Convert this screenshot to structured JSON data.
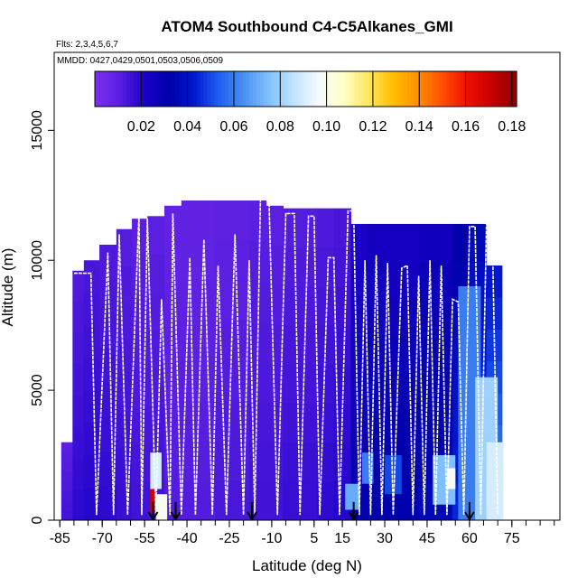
{
  "chart_data": {
    "type": "heatmap",
    "title": "ATOM4 Southbound C4-C5Alkanes_GMI",
    "subtitle_flights": "Flts: 2,3,4,5,6,7",
    "subtitle_dates": "MMDD: 0427,0429,0501,0503,0506,0509",
    "xlabel": "Latitude (deg N)",
    "ylabel": "Altitude (m)",
    "xlim": [
      -87,
      92
    ],
    "ylim": [
      0,
      18000
    ],
    "x_ticks": [
      -85,
      -70,
      -55,
      -40,
      -25,
      -10,
      5,
      15,
      30,
      45,
      60,
      75
    ],
    "x_tick_labels": [
      "-85",
      "-70",
      "-55",
      "-40",
      "-25",
      "-10",
      "5",
      "15",
      "30",
      "45",
      "60",
      "75"
    ],
    "y_ticks": [
      0,
      5000,
      10000,
      15000
    ],
    "y_tick_labels": [
      "0",
      "5000",
      "10000",
      "15000"
    ],
    "colorbar": {
      "range": [
        0.0,
        0.182
      ],
      "ticks": [
        0.02,
        0.04,
        0.06,
        0.08,
        0.1,
        0.12,
        0.14,
        0.16,
        0.18
      ],
      "tick_labels": [
        "0.02",
        "0.04",
        "0.06",
        "0.08",
        "0.10",
        "0.12",
        "0.14",
        "0.16",
        "0.18"
      ],
      "colors": [
        "#7f2ff0",
        "#5a1fe0",
        "#1a00c8",
        "#0000a8",
        "#0018d0",
        "#2060f0",
        "#4a90f0",
        "#80c0ff",
        "#c0e4ff",
        "#f4faff",
        "#ffffc8",
        "#ffe860",
        "#ffc000",
        "#ff9000",
        "#ff5000",
        "#ee1000",
        "#c80000",
        "#8a0000"
      ]
    },
    "columns": [
      {
        "lat": -82,
        "top": 3000,
        "value": 0.01
      },
      {
        "lat": -79,
        "top": 9600,
        "value": 0.012
      },
      {
        "lat": -74,
        "top": 10000,
        "value": 0.013
      },
      {
        "lat": -68,
        "top": 10600,
        "value": 0.012
      },
      {
        "lat": -62,
        "top": 11200,
        "value": 0.011
      },
      {
        "lat": -57,
        "top": 11600,
        "value": 0.01
      },
      {
        "lat": -51,
        "top": 11700,
        "value": 0.01
      },
      {
        "lat": -45,
        "top": 12100,
        "value": 0.008
      },
      {
        "lat": -39,
        "top": 12300,
        "value": 0.008
      },
      {
        "lat": -33,
        "top": 12300,
        "value": 0.008
      },
      {
        "lat": -27,
        "top": 12300,
        "value": 0.009
      },
      {
        "lat": -21,
        "top": 12300,
        "value": 0.009
      },
      {
        "lat": -15,
        "top": 12300,
        "value": 0.01
      },
      {
        "lat": -9,
        "top": 12100,
        "value": 0.01
      },
      {
        "lat": -3,
        "top": 12000,
        "value": 0.011
      },
      {
        "lat": 3,
        "top": 12000,
        "value": 0.011
      },
      {
        "lat": 9,
        "top": 12000,
        "value": 0.012
      },
      {
        "lat": 15,
        "top": 12000,
        "value": 0.013
      },
      {
        "lat": 21,
        "top": 11400,
        "value": 0.02
      },
      {
        "lat": 27,
        "top": 11400,
        "value": 0.022
      },
      {
        "lat": 33,
        "top": 11400,
        "value": 0.022
      },
      {
        "lat": 39,
        "top": 11400,
        "value": 0.022
      },
      {
        "lat": 45,
        "top": 11400,
        "value": 0.024
      },
      {
        "lat": 51,
        "top": 11400,
        "value": 0.024
      },
      {
        "lat": 57,
        "top": 11400,
        "value": 0.03
      },
      {
        "lat": 63,
        "top": 11400,
        "value": 0.034
      },
      {
        "lat": 69,
        "top": 9800,
        "value": 0.04
      }
    ],
    "patches": [
      {
        "lat0": -53,
        "lat1": -51,
        "alt0": 300,
        "alt1": 1200,
        "value": 0.17
      },
      {
        "lat0": -53,
        "lat1": -49,
        "alt0": 1200,
        "alt1": 2600,
        "value": 0.09
      },
      {
        "lat0": -51,
        "lat1": -47,
        "alt0": 0,
        "alt1": 1000,
        "value": 0.1
      },
      {
        "lat0": 16,
        "lat1": 21,
        "alt0": 400,
        "alt1": 1400,
        "value": 0.07
      },
      {
        "lat0": 22,
        "lat1": 26,
        "alt0": 1400,
        "alt1": 2600,
        "value": 0.06
      },
      {
        "lat0": 30,
        "lat1": 36,
        "alt0": 1000,
        "alt1": 2500,
        "value": 0.05
      },
      {
        "lat0": 47,
        "lat1": 55,
        "alt0": 600,
        "alt1": 2500,
        "value": 0.075
      },
      {
        "lat0": 52,
        "lat1": 55,
        "alt0": 1200,
        "alt1": 2000,
        "value": 0.1
      },
      {
        "lat0": 56,
        "lat1": 64,
        "alt0": 0,
        "alt1": 9000,
        "value": 0.06
      },
      {
        "lat0": 62,
        "lat1": 70,
        "alt0": 0,
        "alt1": 5500,
        "value": 0.08
      },
      {
        "lat0": 66,
        "lat1": 72,
        "alt0": 0,
        "alt1": 3000,
        "value": 0.09
      }
    ],
    "flight_tracks": [
      [
        [
          -80,
          9500
        ],
        [
          -74,
          9500
        ],
        [
          -72,
          200
        ],
        [
          -68,
          10300
        ],
        [
          -66,
          200
        ],
        [
          -64,
          11000
        ],
        [
          -61,
          200
        ],
        [
          -57,
          11800
        ],
        [
          -56,
          200
        ],
        [
          -54,
          11600
        ],
        [
          -51,
          200
        ],
        [
          -49,
          8500
        ],
        [
          -46,
          200
        ],
        [
          -45,
          11800
        ],
        [
          -42,
          200
        ],
        [
          -39,
          10100
        ],
        [
          -37,
          200
        ],
        [
          -34,
          10800
        ],
        [
          -31,
          200
        ],
        [
          -29,
          9800
        ],
        [
          -26,
          200
        ],
        [
          -23,
          11000
        ],
        [
          -20,
          200
        ],
        [
          -18,
          10000
        ],
        [
          -16,
          200
        ],
        [
          -14,
          12400
        ],
        [
          -11,
          12400
        ],
        [
          -8,
          200
        ],
        [
          -5,
          11800
        ],
        [
          -2,
          11800
        ],
        [
          0,
          200
        ],
        [
          3,
          11700
        ],
        [
          5,
          11700
        ],
        [
          7,
          200
        ],
        [
          10,
          10100
        ],
        [
          12,
          10100
        ],
        [
          14,
          200
        ],
        [
          17,
          11900
        ],
        [
          19,
          11900
        ],
        [
          21,
          200
        ],
        [
          23,
          10000
        ],
        [
          25,
          200
        ],
        [
          27,
          10200
        ],
        [
          29,
          200
        ],
        [
          31,
          9900
        ],
        [
          33,
          200
        ],
        [
          36,
          9700
        ],
        [
          38,
          9800
        ],
        [
          40,
          200
        ],
        [
          42,
          9400
        ],
        [
          44,
          200
        ],
        [
          46,
          10000
        ],
        [
          48,
          200
        ],
        [
          50,
          9800
        ],
        [
          52,
          200
        ],
        [
          54,
          8500
        ],
        [
          56,
          8400
        ],
        [
          58,
          200
        ],
        [
          60,
          11300
        ],
        [
          62,
          11300
        ],
        [
          64,
          200
        ],
        [
          66,
          11400
        ],
        [
          68,
          11400
        ],
        [
          70,
          200
        ]
      ]
    ],
    "arrows_lat": [
      -52,
      -44,
      -17,
      19,
      60
    ]
  }
}
